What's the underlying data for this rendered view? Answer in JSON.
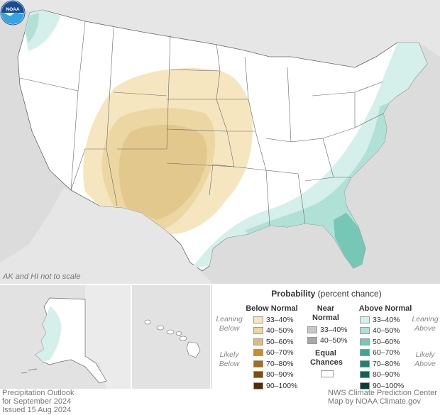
{
  "map": {
    "scale_note": "AK and HI not to scale"
  },
  "legend": {
    "title_bold": "Probability",
    "title_rest": " (percent chance)",
    "below_normal": {
      "heading": "Below Normal",
      "leaning": [
        "Leaning",
        "Below"
      ],
      "likely": [
        "Likely",
        "Below"
      ],
      "levels": [
        {
          "label": "33–40%",
          "color": "#f5e6c0"
        },
        {
          "label": "40–50%",
          "color": "#ecd7a3"
        },
        {
          "label": "50–60%",
          "color": "#ddbb7c"
        },
        {
          "label": "60–70%",
          "color": "#c98d2d"
        },
        {
          "label": "70–80%",
          "color": "#a86b1b"
        },
        {
          "label": "80–90%",
          "color": "#7d4c0f"
        },
        {
          "label": "90–100%",
          "color": "#4f2e06"
        }
      ]
    },
    "near_normal": {
      "heading": [
        "Near",
        "Normal"
      ],
      "levels": [
        {
          "label": "33–40%",
          "color": "#c8c8c8"
        },
        {
          "label": "40–50%",
          "color": "#a8a8a8"
        }
      ]
    },
    "equal_chances": {
      "label": [
        "Equal",
        "Chances"
      ],
      "color": "#ffffff"
    },
    "above_normal": {
      "heading": "Above Normal",
      "leaning": [
        "Leaning",
        "Above"
      ],
      "likely": [
        "Likely",
        "Above"
      ],
      "levels": [
        {
          "label": "33–40%",
          "color": "#d5efea"
        },
        {
          "label": "40–50%",
          "color": "#b0e1d7"
        },
        {
          "label": "50–60%",
          "color": "#77c7b7"
        },
        {
          "label": "60–70%",
          "color": "#3ea594"
        },
        {
          "label": "70–80%",
          "color": "#1e8473"
        },
        {
          "label": "80–90%",
          "color": "#0f6456"
        },
        {
          "label": "90–100%",
          "color": "#073f36"
        }
      ]
    }
  },
  "footer": {
    "left": [
      "Precipitation Outlook",
      "for September 2024",
      "Issued 15 Aug 2024"
    ],
    "right": [
      "NWS Climate Prediction Center",
      "Map by NOAA Climate.gov"
    ]
  },
  "logo": {
    "text": "NOAA"
  }
}
